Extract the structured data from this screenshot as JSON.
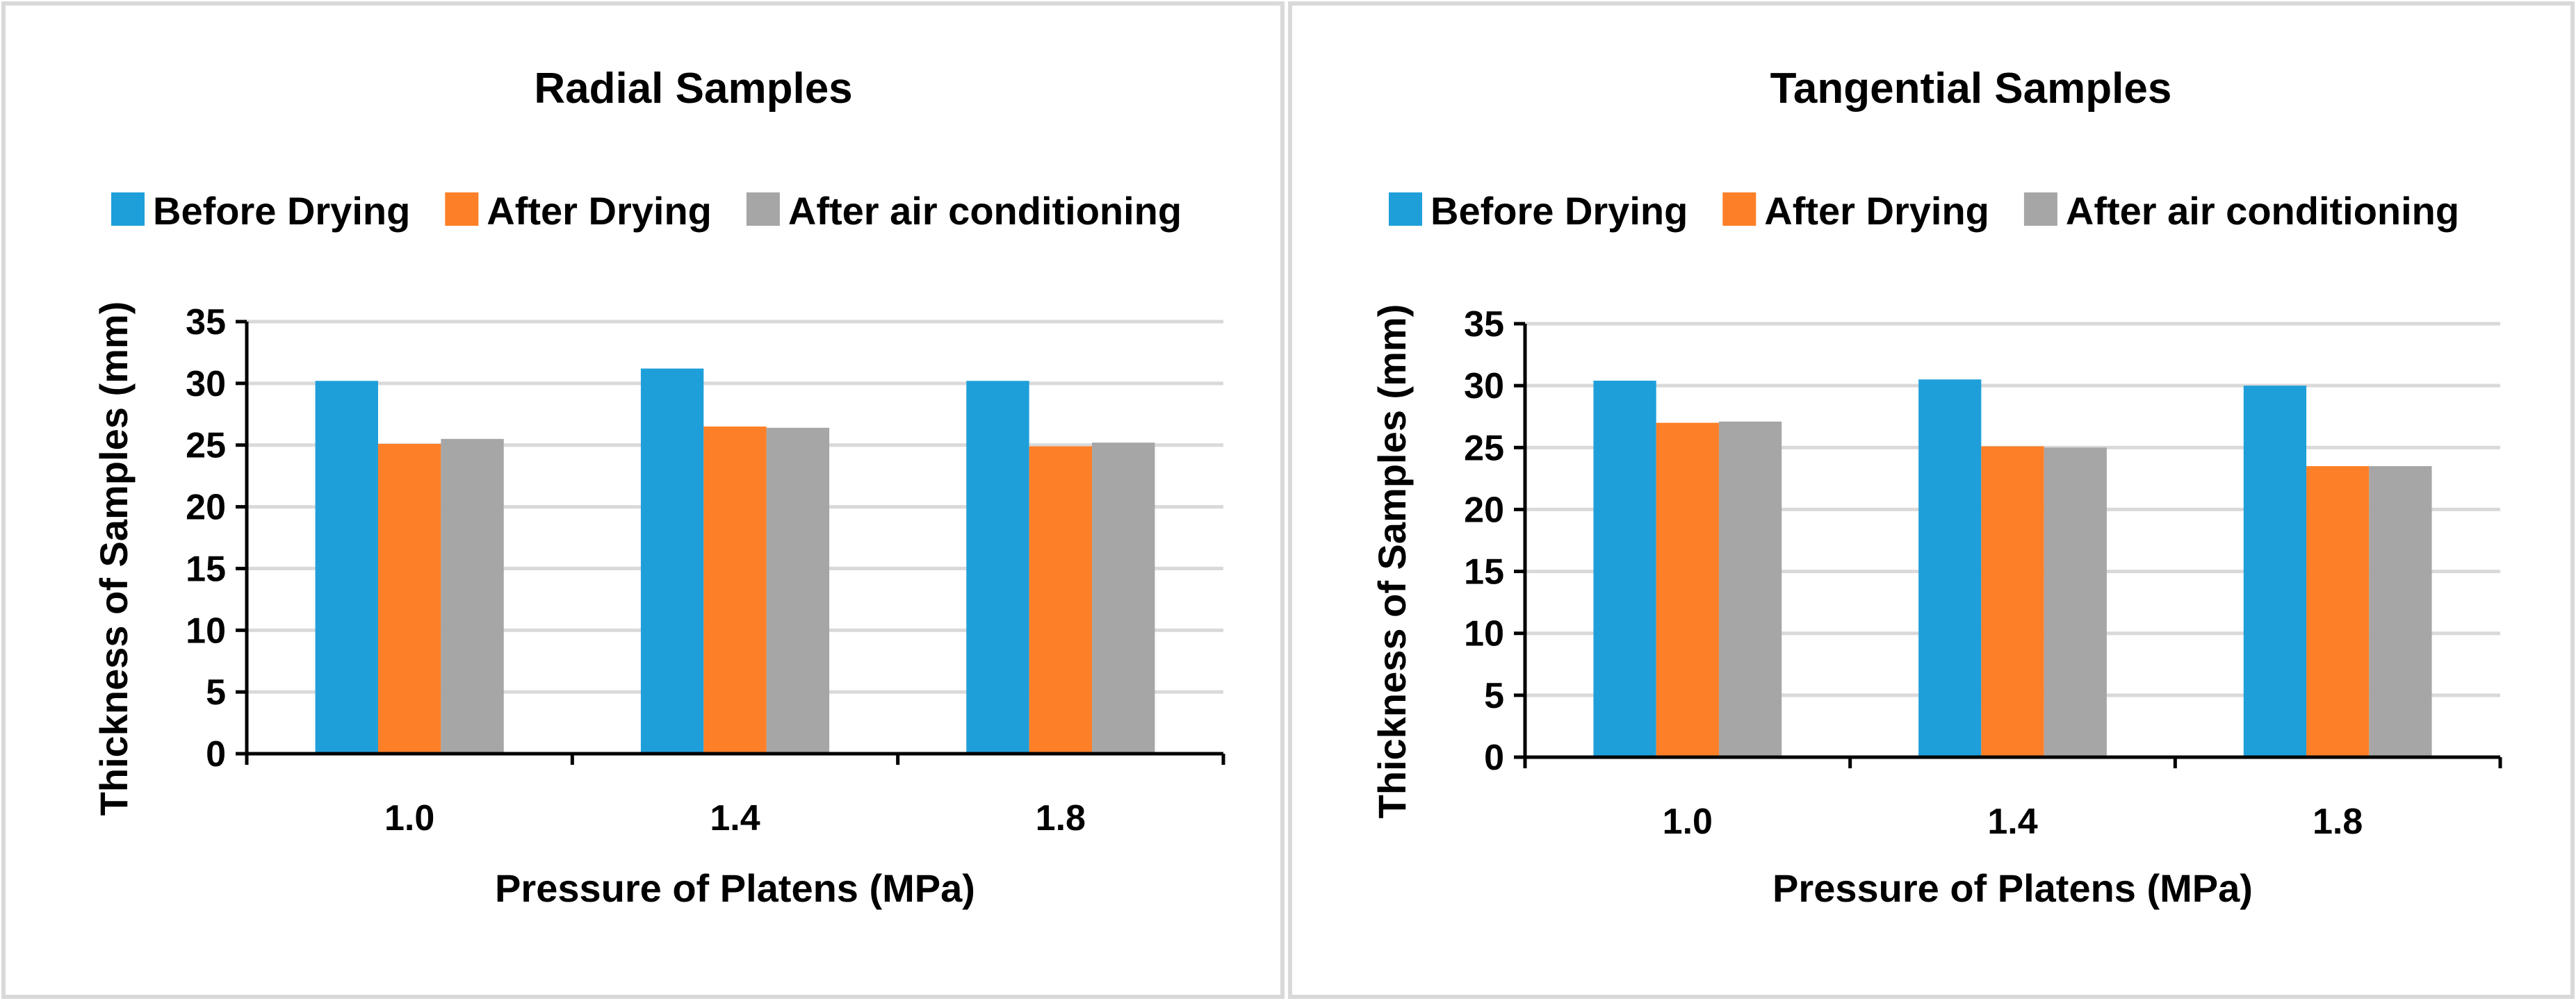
{
  "chart_data": [
    {
      "type": "bar",
      "title": "Radial Samples",
      "xlabel": "Pressure of Platens (MPa)",
      "ylabel": "Thickness of Samples (mm)",
      "ylim": [
        0,
        35
      ],
      "yticks": [
        "0",
        "5",
        "10",
        "15",
        "20",
        "25",
        "30",
        "35"
      ],
      "categories": [
        "1.0",
        "1.4",
        "1.8"
      ],
      "legend_position": "top",
      "grid": true,
      "series": [
        {
          "name": "Before Drying",
          "color": "#1f9fda",
          "values": [
            30.2,
            31.2,
            30.2
          ]
        },
        {
          "name": "After Drying",
          "color": "#fd7f27",
          "values": [
            25.1,
            26.5,
            24.9
          ]
        },
        {
          "name": "After air conditioning",
          "color": "#a6a6a6",
          "values": [
            25.5,
            26.4,
            25.2
          ]
        }
      ]
    },
    {
      "type": "bar",
      "title": "Tangential Samples",
      "xlabel": "Pressure of Platens (MPa)",
      "ylabel": "Thickness of Samples (mm)",
      "ylim": [
        0,
        35
      ],
      "yticks": [
        "0",
        "5",
        "10",
        "15",
        "20",
        "25",
        "30",
        "35"
      ],
      "categories": [
        "1.0",
        "1.4",
        "1.8"
      ],
      "legend_position": "top",
      "grid": true,
      "series": [
        {
          "name": "Before Drying",
          "color": "#1f9fda",
          "values": [
            30.4,
            30.5,
            30.0
          ]
        },
        {
          "name": "After Drying",
          "color": "#fd7f27",
          "values": [
            27.0,
            25.1,
            23.5
          ]
        },
        {
          "name": "After air conditioning",
          "color": "#a6a6a6",
          "values": [
            27.1,
            25.0,
            23.5
          ]
        }
      ]
    }
  ]
}
